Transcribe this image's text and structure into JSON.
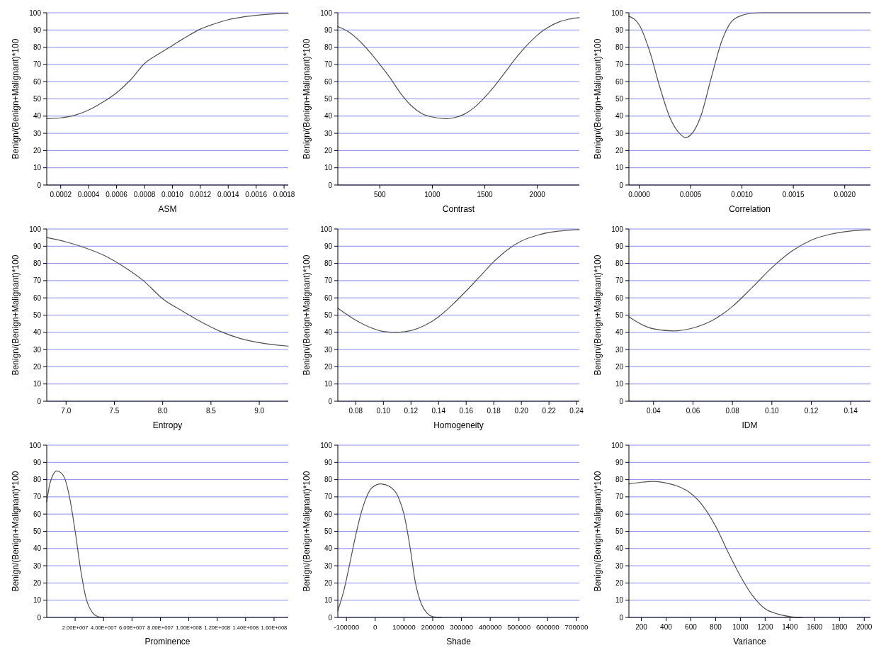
{
  "chart_data": [
    {
      "type": "line",
      "xlabel": "ASM",
      "ylabel": "Benign/(Benign+Malignant)*100",
      "color": "#505050",
      "grid": "y",
      "x": [
        0.0001,
        0.0002,
        0.0003,
        0.0004,
        0.0005,
        0.0006,
        0.0007,
        0.0008,
        0.0009,
        0.001,
        0.0011,
        0.0012,
        0.0013,
        0.0014,
        0.0015,
        0.0016,
        0.0017,
        0.00183
      ],
      "values": [
        38.5,
        39,
        40.5,
        43.5,
        48,
        53.5,
        61,
        70.5,
        76,
        81,
        86,
        90.5,
        93.5,
        96,
        97.5,
        98.5,
        99.2,
        99.6
      ],
      "xlim": [
        0.0001,
        0.00183
      ],
      "xticks": [
        {
          "value": 0.0002,
          "label": "0.0002"
        },
        {
          "value": 0.0004,
          "label": "0.0004"
        },
        {
          "value": 0.0006,
          "label": "0.0006"
        },
        {
          "value": 0.0008,
          "label": "0.0008"
        },
        {
          "value": 0.001,
          "label": "0.0010"
        },
        {
          "value": 0.0012,
          "label": "0.0012"
        },
        {
          "value": 0.0014,
          "label": "0.0014"
        },
        {
          "value": 0.0016,
          "label": "0.0016"
        },
        {
          "value": 0.0018,
          "label": "0.0018"
        }
      ],
      "ylim": [
        0,
        100
      ],
      "yticks": [
        0,
        10,
        20,
        30,
        40,
        50,
        60,
        70,
        80,
        90,
        100
      ]
    },
    {
      "type": "line",
      "xlabel": "Contrast",
      "ylabel": "Benign/(Benign+Malignant)*100",
      "color": "#505050",
      "grid": "y",
      "x": [
        100,
        200,
        300,
        400,
        500,
        600,
        700,
        800,
        900,
        1000,
        1130,
        1200,
        1300,
        1400,
        1500,
        1600,
        1700,
        1800,
        1900,
        2000,
        2100,
        2200,
        2300,
        2400
      ],
      "values": [
        92,
        89,
        84,
        77.5,
        70,
        62,
        53,
        46,
        41.5,
        39.5,
        38.5,
        39,
        41,
        45,
        51,
        58,
        66,
        74,
        81,
        87,
        91.5,
        94.5,
        96.3,
        97.2
      ],
      "xlim": [
        100,
        2400
      ],
      "xticks": [
        500,
        1000,
        1500,
        2000
      ],
      "ylim": [
        0,
        100
      ],
      "yticks": [
        0,
        10,
        20,
        30,
        40,
        50,
        60,
        70,
        80,
        90,
        100
      ]
    },
    {
      "type": "line",
      "xlabel": "Correlation",
      "ylabel": "Benign/(Benign+Malignant)*100",
      "color": "#505050",
      "grid": "y",
      "x": [
        -0.0001,
        0,
        0.0001,
        0.0002,
        0.0003,
        0.0004,
        0.00045,
        0.0005,
        0.0006,
        0.0007,
        0.0008,
        0.0009,
        0.001,
        0.0011,
        0.0012,
        0.00225
      ],
      "values": [
        98,
        93,
        78,
        57,
        39,
        29.5,
        27.5,
        29,
        40,
        62,
        83,
        95,
        98.5,
        99.7,
        100,
        100
      ],
      "xlim": [
        -0.0001,
        0.00225
      ],
      "xticks": [
        {
          "value": 0,
          "label": "0.0000"
        },
        {
          "value": 0.0005,
          "label": "0.0005"
        },
        {
          "value": 0.001,
          "label": "0.0010"
        },
        {
          "value": 0.0015,
          "label": "0.0015"
        },
        {
          "value": 0.002,
          "label": "0.0020"
        }
      ],
      "ylim": [
        0,
        100
      ],
      "yticks": [
        0,
        10,
        20,
        30,
        40,
        50,
        60,
        70,
        80,
        90,
        100
      ]
    },
    {
      "type": "line",
      "xlabel": "Entropy",
      "ylabel": "Benign/(Benign+Malignant)*100",
      "color": "#505050",
      "grid": "y",
      "x": [
        6.8,
        7.0,
        7.2,
        7.4,
        7.6,
        7.8,
        8.0,
        8.2,
        8.4,
        8.6,
        8.8,
        9.0,
        9.3
      ],
      "values": [
        95,
        92.5,
        89,
        84.5,
        78,
        70,
        59.5,
        52.5,
        46,
        40.5,
        36.5,
        34,
        32
      ],
      "xlim": [
        6.8,
        9.3
      ],
      "xticks": [
        {
          "value": 7,
          "label": "7.0"
        },
        {
          "value": 7.5,
          "label": "7.5"
        },
        {
          "value": 8,
          "label": "8.0"
        },
        {
          "value": 8.5,
          "label": "8.5"
        },
        {
          "value": 9,
          "label": "9.0"
        }
      ],
      "ylim": [
        0,
        100
      ],
      "yticks": [
        0,
        10,
        20,
        30,
        40,
        50,
        60,
        70,
        80,
        90,
        100
      ]
    },
    {
      "type": "line",
      "xlabel": "Homogeneity",
      "ylabel": "Benign/(Benign+Malignant)*100",
      "color": "#505050",
      "grid": "y",
      "x": [
        0.067,
        0.08,
        0.09,
        0.1,
        0.11,
        0.12,
        0.13,
        0.14,
        0.15,
        0.16,
        0.17,
        0.18,
        0.19,
        0.2,
        0.21,
        0.22,
        0.23,
        0.242
      ],
      "values": [
        54,
        47,
        43,
        40.5,
        40,
        41,
        44,
        49,
        56,
        64,
        72.5,
        81,
        88,
        93,
        96,
        98,
        99,
        99.6
      ],
      "xlim": [
        0.067,
        0.242
      ],
      "xticks": [
        0.08,
        {
          "value": 0.1,
          "label": "0.10"
        },
        0.12,
        0.14,
        0.16,
        0.18,
        {
          "value": 0.2,
          "label": "0.20"
        },
        0.22,
        0.24
      ],
      "ylim": [
        0,
        100
      ],
      "yticks": [
        0,
        10,
        20,
        30,
        40,
        50,
        60,
        70,
        80,
        90,
        100
      ]
    },
    {
      "type": "line",
      "xlabel": "IDM",
      "ylabel": "Benign/(Benign+Malignant)*100",
      "color": "#505050",
      "grid": "y",
      "x": [
        0.0275,
        0.035,
        0.04,
        0.05,
        0.06,
        0.07,
        0.08,
        0.09,
        0.1,
        0.11,
        0.12,
        0.13,
        0.14,
        0.15
      ],
      "values": [
        49,
        44,
        42,
        40.8,
        42.5,
        47,
        55,
        66,
        77.5,
        87,
        93.5,
        97,
        98.8,
        99.5
      ],
      "xlim": [
        0.0275,
        0.15
      ],
      "xticks": [
        0.04,
        0.06,
        0.08,
        {
          "value": 0.1,
          "label": "0.10"
        },
        0.12,
        0.14
      ],
      "ylim": [
        0,
        100
      ],
      "yticks": [
        0,
        10,
        20,
        30,
        40,
        50,
        60,
        70,
        80,
        90,
        100
      ]
    },
    {
      "type": "line",
      "xlabel": "Prominence",
      "ylabel": "Benign/(Benign+Malignant)*100",
      "color": "#505050",
      "grid": "y",
      "x": [
        0,
        2000000,
        4000000,
        7000000,
        10000000,
        13000000,
        16000000,
        20000000,
        24000000,
        28000000,
        32000000,
        36000000,
        40000000
      ],
      "values": [
        67,
        77,
        82,
        85,
        84,
        80,
        70,
        50,
        27,
        10,
        3,
        0.5,
        0
      ],
      "xlim": [
        0,
        170000000
      ],
      "xticks": [
        {
          "value": 20000000,
          "label": "2.00E+007"
        },
        {
          "value": 40000000,
          "label": "4.00E+007"
        },
        {
          "value": 60000000,
          "label": "6.00E+007"
        },
        {
          "value": 80000000,
          "label": "8.00E+007"
        },
        {
          "value": 100000000,
          "label": "1.00E+008"
        },
        {
          "value": 120000000,
          "label": "1.20E+008"
        },
        {
          "value": 140000000,
          "label": "1.40E+008"
        },
        {
          "value": 160000000,
          "label": "1.60E+008"
        }
      ],
      "ylim": [
        0,
        100
      ],
      "yticks": [
        0,
        10,
        20,
        30,
        40,
        50,
        60,
        70,
        80,
        90,
        100
      ]
    },
    {
      "type": "line",
      "xlabel": "Shade",
      "ylabel": "Benign/(Benign+Malignant)*100",
      "color": "#505050",
      "grid": "y",
      "x": [
        -130000,
        -110000,
        -90000,
        -70000,
        -50000,
        -30000,
        -10000,
        20000,
        50000,
        80000,
        100000,
        120000,
        140000,
        160000,
        180000,
        200000,
        230000
      ],
      "values": [
        4,
        15,
        30,
        46,
        60,
        70,
        75.5,
        77.5,
        76,
        70,
        60,
        42,
        20,
        8,
        2.5,
        0.5,
        0
      ],
      "xlim": [
        -130000,
        710000
      ],
      "xticks": [
        -100000,
        0,
        100000,
        200000,
        300000,
        400000,
        500000,
        600000,
        700000
      ],
      "ylim": [
        0,
        100
      ],
      "yticks": [
        0,
        10,
        20,
        30,
        40,
        50,
        60,
        70,
        80,
        90,
        100
      ]
    },
    {
      "type": "line",
      "xlabel": "Variance",
      "ylabel": "Benign/(Benign+Malignant)*100",
      "color": "#505050",
      "grid": "y",
      "x": [
        100,
        200,
        300,
        400,
        500,
        600,
        700,
        800,
        900,
        1000,
        1100,
        1200,
        1300,
        1400,
        1500
      ],
      "values": [
        77.5,
        78.5,
        79,
        78,
        76,
        72,
        64.5,
        53,
        38,
        24,
        12.5,
        5,
        2,
        0.5,
        0
      ],
      "xlim": [
        100,
        2050
      ],
      "xticks": [
        200,
        400,
        600,
        800,
        1000,
        1200,
        1400,
        1600,
        1800,
        2000
      ],
      "ylim": [
        0,
        100
      ],
      "yticks": [
        0,
        10,
        20,
        30,
        40,
        50,
        60,
        70,
        80,
        90,
        100
      ]
    }
  ]
}
